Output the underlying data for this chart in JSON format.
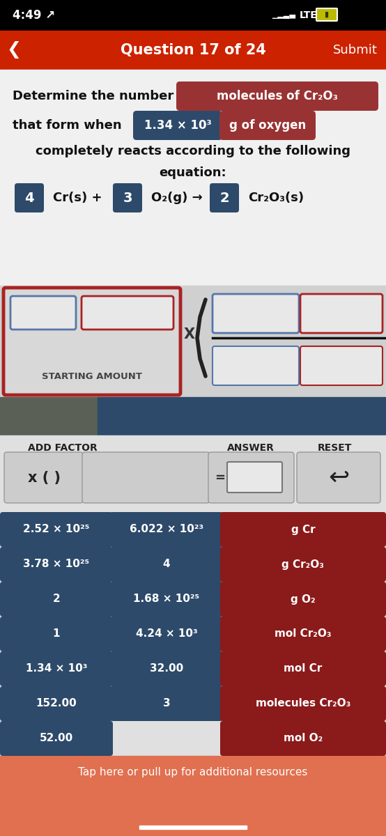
{
  "status_bar_bg": "#000000",
  "status_time": "4:49 ↗",
  "status_text_color": "#ffffff",
  "nav_bg": "#cc2200",
  "nav_title": "Question 17 of 24",
  "nav_submit": "Submit",
  "nav_text_color": "#ffffff",
  "question_bg": "#f0f0f0",
  "highlight_red": "#993333",
  "highlight_blue": "#2d4a6a",
  "molecules_label": "molecules of Cr₂O₃",
  "amount_label": "1.34 × 10³",
  "unit_label": "g of oxygen",
  "eq_coeff1": "4",
  "eq_species1": "Cr(s) +",
  "eq_coeff2": "3",
  "eq_species2": "O₂(g) →",
  "eq_coeff3": "2",
  "eq_species3": "Cr₂O₃(s)",
  "panel_bg": "#d8d8d8",
  "panel_border_color": "#aa2222",
  "starting_amount_label": "STARTING AMOUNT",
  "dark_strip_left_bg": "#5a6a5a",
  "dark_strip_right_bg": "#2d4a6a",
  "add_factor_label": "ADD FACTOR",
  "answer_label": "ANSWER",
  "reset_label": "RESET",
  "controls_bg": "#e8e8e8",
  "grid_bg": "#e8e8e8",
  "left_col_bg": "#2d4a6a",
  "mid_col_bg": "#2d4a6a",
  "right_col_bg": "#8b1a1a",
  "grid_text_color": "#ffffff",
  "grid_left_col": [
    "2.52 × 10²⁵",
    "3.78 × 10²⁵",
    "2",
    "1",
    "1.34 × 10³",
    "152.00",
    "52.00"
  ],
  "grid_mid_col": [
    "6.022 × 10²³",
    "4",
    "1.68 × 10²⁵",
    "4.24 × 10³",
    "32.00",
    "3",
    ""
  ],
  "grid_right_col": [
    "g Cr",
    "g Cr₂O₃",
    "g O₂",
    "mol Cr₂O₃",
    "mol Cr",
    "molecules Cr₂O₃",
    "mol O₂"
  ],
  "bottom_bar_bg": "#e07050",
  "bottom_bar_text": "Tap here or pull up for additional resources",
  "bottom_bar_text_color": "#ffffff"
}
